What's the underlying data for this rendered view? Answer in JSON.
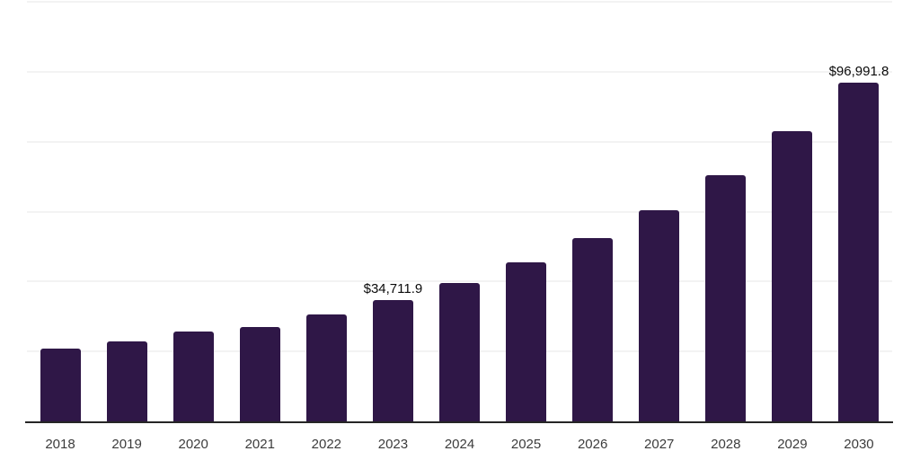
{
  "chart_data": {
    "type": "bar",
    "title": "",
    "xlabel": "",
    "ylabel": "",
    "categories": [
      "2018",
      "2019",
      "2020",
      "2021",
      "2022",
      "2023",
      "2024",
      "2025",
      "2026",
      "2027",
      "2028",
      "2029",
      "2030"
    ],
    "values": [
      20700,
      22900,
      25600,
      26900,
      30500,
      34711.9,
      39500,
      45500,
      52300,
      60500,
      70500,
      82900,
      96991.8
    ],
    "annotations": [
      {
        "category": "2023",
        "text": "$34,711.9"
      },
      {
        "category": "2030",
        "text": "$96,991.8"
      }
    ],
    "ylim": [
      0,
      120000
    ],
    "gridline_step": 20000,
    "grid": "horizontal",
    "legend": "none",
    "y_axis_tick_labels": "none",
    "colors": {
      "bar": "#2F1747",
      "gridline": "#F3F3F3",
      "axis": "#262626",
      "year_label": "#3C3C3C",
      "data_label": "#0A0A0A",
      "background": "#FFFFFF"
    }
  }
}
